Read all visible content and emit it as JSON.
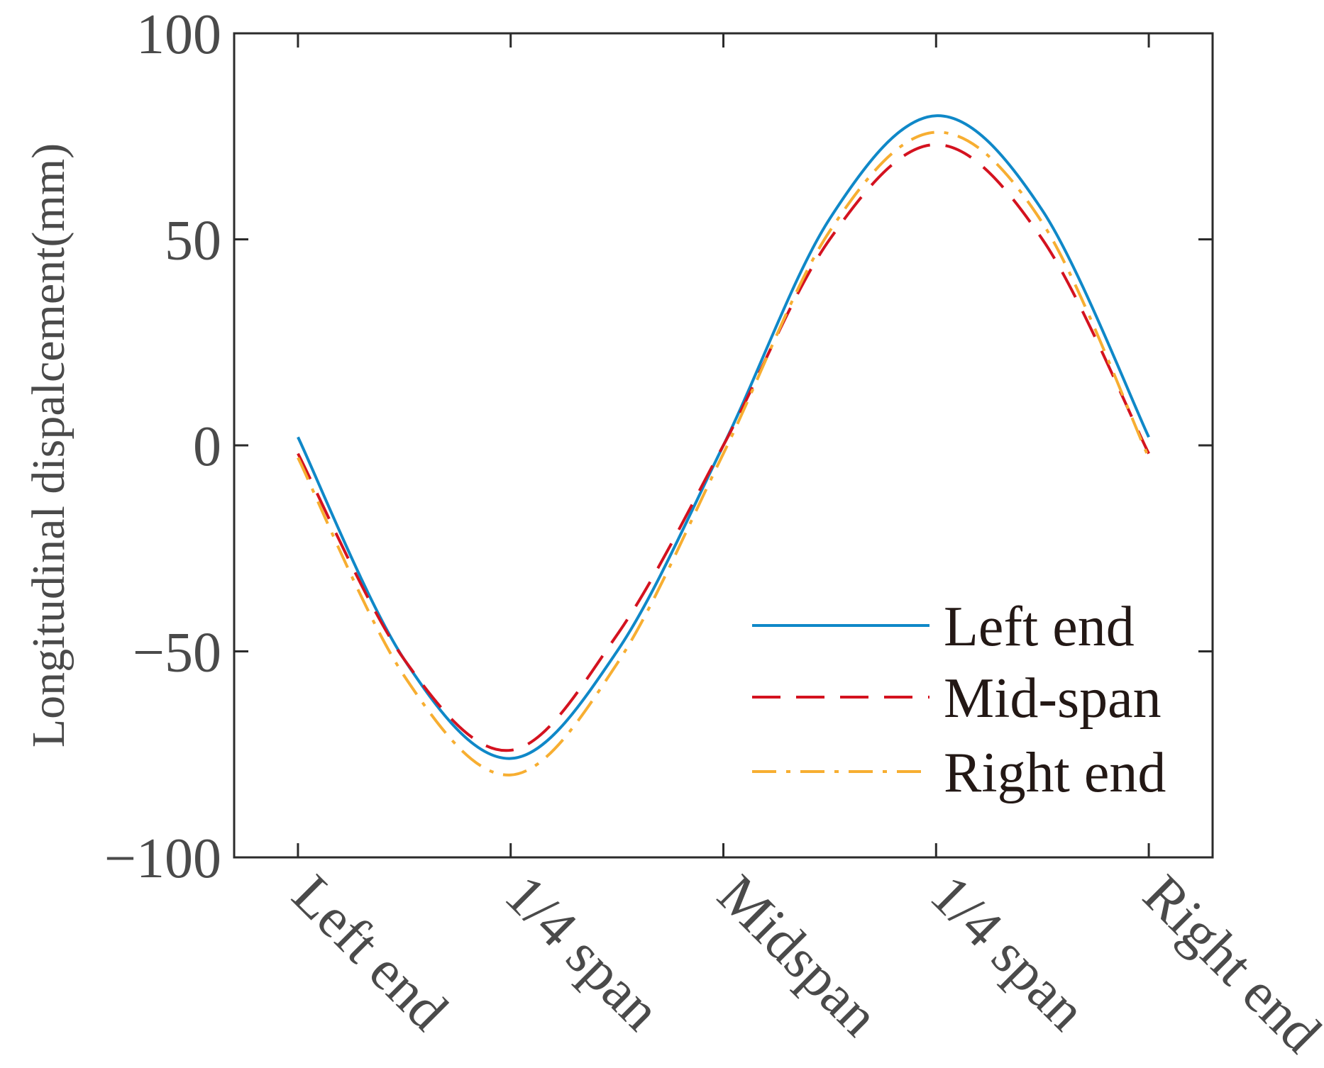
{
  "chart_data": {
    "type": "line",
    "title": "",
    "xlabel": "",
    "ylabel": "Longitudinal dispalcement(mm)",
    "ylim": [
      -100,
      100
    ],
    "yticks": [
      100,
      50,
      0,
      -50,
      -100
    ],
    "ytick_labels": [
      "100",
      "50",
      "0",
      "−50",
      "−100"
    ],
    "x": [
      0,
      0.5,
      1,
      1.5,
      2,
      2.5,
      3,
      3.5,
      4
    ],
    "xlim": [
      -0.3,
      4.3
    ],
    "xticks": [
      0,
      1,
      2,
      3,
      4
    ],
    "xtick_labels": [
      "Left end",
      "1/4 span",
      "Midspan",
      "1/4 span",
      "Right end"
    ],
    "grid": false,
    "legend_position": "bottom-right",
    "series": [
      {
        "name": "Left end",
        "color": "#0f88c8",
        "style": "solid",
        "values": [
          2,
          -52,
          -76,
          -50,
          0,
          55,
          80,
          57,
          2
        ]
      },
      {
        "name": "Mid-span",
        "color": "#d4121f",
        "style": "dashed",
        "values": [
          -2,
          -52,
          -74,
          -46,
          0,
          50,
          73,
          50,
          -2
        ]
      },
      {
        "name": "Right end",
        "color": "#f7ae31",
        "style": "dashdot",
        "values": [
          -3,
          -56,
          -80,
          -53,
          -2,
          52,
          76,
          54,
          -3
        ]
      }
    ]
  }
}
